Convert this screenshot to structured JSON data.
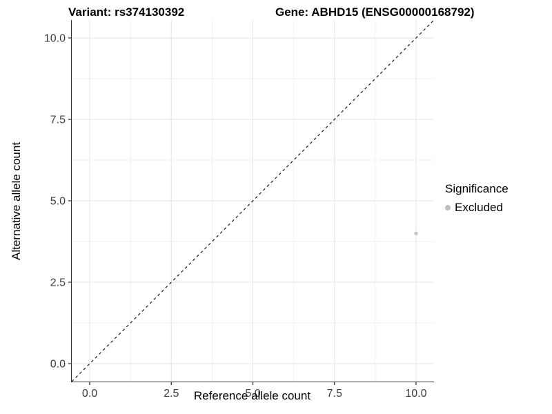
{
  "titles": {
    "variant": "Variant: rs374130392",
    "gene": "Gene: ABHD15 (ENSG00000168792)"
  },
  "x_axis": {
    "title": "Reference allele count"
  },
  "y_axis": {
    "title": "Alternative allele count"
  },
  "legend": {
    "title": "Significance",
    "items": [
      {
        "label": "Excluded",
        "color": "#bebebe"
      }
    ]
  },
  "chart_data": {
    "type": "scatter",
    "title": "Variant: rs374130392 — Gene: ABHD15 (ENSG00000168792)",
    "xlabel": "Reference allele count",
    "ylabel": "Alternative allele count",
    "xlim": [
      -0.55,
      10.55
    ],
    "ylim": [
      -0.55,
      10.55
    ],
    "x_ticks": [
      {
        "v": 0,
        "label": "0.0"
      },
      {
        "v": 2.5,
        "label": "2.5"
      },
      {
        "v": 5,
        "label": "5.0"
      },
      {
        "v": 7.5,
        "label": "7.5"
      },
      {
        "v": 10,
        "label": "10.0"
      }
    ],
    "y_ticks": [
      {
        "v": 0,
        "label": "0.0"
      },
      {
        "v": 2.5,
        "label": "2.5"
      },
      {
        "v": 5,
        "label": "5.0"
      },
      {
        "v": 7.5,
        "label": "7.5"
      },
      {
        "v": 10,
        "label": "10.0"
      }
    ],
    "grid": {
      "major": [
        0,
        2.5,
        5,
        7.5,
        10
      ],
      "minor": [
        1.25,
        3.75,
        6.25,
        8.75
      ],
      "major_color": "#e3e3e3",
      "minor_color": "#f0f0f0"
    },
    "reference_line": {
      "type": "identity",
      "style": "dashed",
      "color": "#1a1a1a"
    },
    "series": [
      {
        "name": "Excluded",
        "color": "#c5c5c5",
        "points": [
          {
            "x": 10,
            "y": 4
          }
        ]
      }
    ],
    "legend_position": "right",
    "tick_color": "#333333",
    "tick_label_color": "#3d3d3d"
  }
}
